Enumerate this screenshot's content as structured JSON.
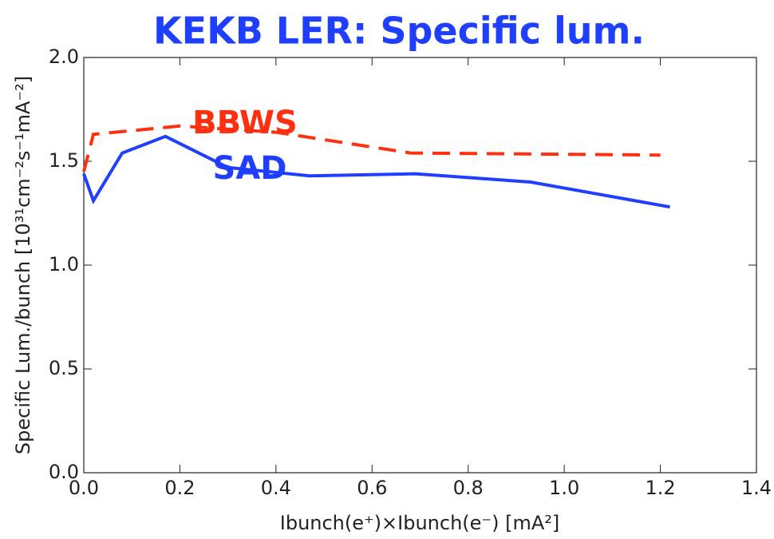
{
  "chart_data": {
    "type": "line",
    "title": "KEKB LER: Specific lum.",
    "xlabel": "Ibunch(e⁺)×Ibunch(e⁻) [mA²]",
    "ylabel": "Specific Lum./bunch [10³¹cm⁻²s⁻¹mA⁻²]",
    "xlim": [
      0,
      1.4
    ],
    "ylim": [
      0,
      2
    ],
    "xticks": [
      {
        "value": 0,
        "label": "0.0"
      },
      {
        "value": 0.2,
        "label": "0.2"
      },
      {
        "value": 0.4,
        "label": "0.4"
      },
      {
        "value": 0.6,
        "label": "0.6"
      },
      {
        "value": 0.8,
        "label": "0.8"
      },
      {
        "value": 1,
        "label": "1.0"
      },
      {
        "value": 1.2,
        "label": "1.2"
      },
      {
        "value": 1.4,
        "label": "1.4"
      }
    ],
    "yticks": [
      {
        "value": 0,
        "label": "0.0"
      },
      {
        "value": 0.5,
        "label": "0.5"
      },
      {
        "value": 1,
        "label": "1.0"
      },
      {
        "value": 1.5,
        "label": "1.5"
      },
      {
        "value": 2,
        "label": "2.0"
      }
    ],
    "series": [
      {
        "name": "BBWS",
        "color": "#ff3010",
        "dash": true,
        "x": [
          0,
          0.02,
          0.2,
          0.4,
          0.68,
          1.2
        ],
        "values": [
          1.45,
          1.63,
          1.67,
          1.64,
          1.54,
          1.53
        ]
      },
      {
        "name": "SAD",
        "color": "#1f3fff",
        "dash": false,
        "x": [
          0,
          0.02,
          0.08,
          0.17,
          0.3,
          0.47,
          0.69,
          0.93,
          1.22
        ],
        "values": [
          1.44,
          1.31,
          1.54,
          1.62,
          1.47,
          1.43,
          1.44,
          1.4,
          1.28
        ]
      }
    ]
  }
}
